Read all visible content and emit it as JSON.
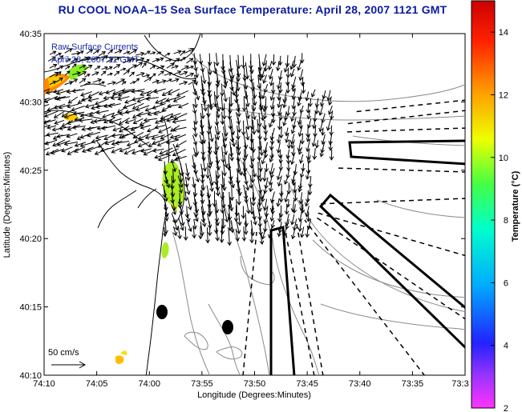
{
  "title": "RU COOL  NOAA–15  Sea Surface Temperature:  April 28, 2007 1121 GMT",
  "legend": {
    "line1": "Raw Surface Currents",
    "line2": "April 28, 2007 11 GMT"
  },
  "scale_label": "50 cm/s",
  "axes": {
    "xlabel": "Longitude (Degrees:Minutes)",
    "ylabel": "Latitude (Degrees:Minutes)",
    "xticks": [
      "74:10",
      "74:05",
      "74:00",
      "73:55",
      "73:50",
      "73:45",
      "73:40",
      "73:35",
      "73:3"
    ],
    "yticks": [
      "40:35",
      "40:30",
      "40:25",
      "40:20",
      "40:15",
      "40:10"
    ]
  },
  "colorbar": {
    "label": "Temperature (°C)",
    "ticks": [
      "14",
      "12",
      "10",
      "8",
      "6",
      "4",
      "2"
    ],
    "range": [
      2,
      15
    ]
  },
  "colors": {
    "title": "#0a1aa0",
    "legend_text": "#1a2aa8",
    "coast": "#000000",
    "bathymetry": "#888888"
  }
}
